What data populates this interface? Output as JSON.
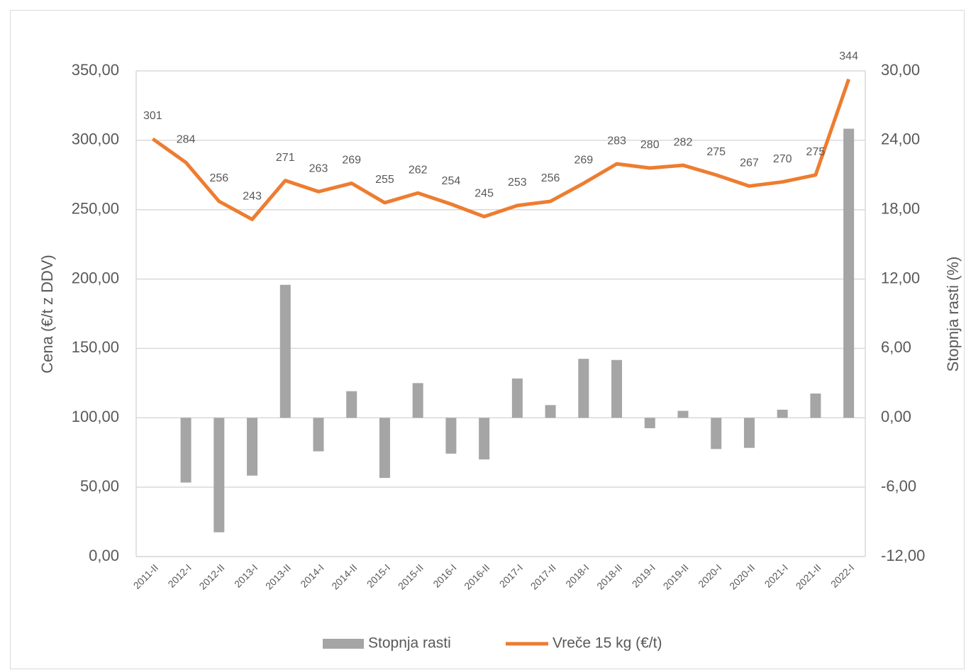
{
  "chart_data": {
    "type": "combo",
    "y_label": "Cena (€/t z DDV)",
    "y2_label": "Stopnja rasti (%)",
    "categories": [
      "2011-II",
      "2012-I",
      "2012-II",
      "2013-I",
      "2013-II",
      "2014-I",
      "2014-II",
      "2015-I",
      "2015-II",
      "2016-I",
      "2016-II",
      "2017-I",
      "2017-II",
      "2018-I",
      "2018-II",
      "2019-I",
      "2019-II",
      "2020-I",
      "2020-II",
      "2021-I",
      "2021-II",
      "2022-I"
    ],
    "series": [
      {
        "name": "Stopnja rasti",
        "type": "bar",
        "axis": "y2",
        "color": "#a5a5a5",
        "values": [
          null,
          -5.6,
          -9.9,
          -5.0,
          11.5,
          -2.9,
          2.3,
          -5.2,
          3.0,
          -3.1,
          -3.6,
          3.4,
          1.1,
          5.1,
          5.0,
          -0.9,
          0.6,
          -2.7,
          -2.6,
          0.7,
          2.1,
          25.0
        ]
      },
      {
        "name": "Vreče 15 kg (€/t)",
        "type": "line",
        "axis": "y",
        "color": "#ed7d31",
        "values": [
          301,
          284,
          256,
          243,
          271,
          263,
          269,
          255,
          262,
          254,
          245,
          253,
          256,
          269,
          283,
          280,
          282,
          275,
          267,
          270,
          275,
          344
        ]
      }
    ],
    "ylim": [
      0,
      350
    ],
    "yticks": [
      {
        "value": 0,
        "label": "0,00"
      },
      {
        "value": 50,
        "label": "50,00"
      },
      {
        "value": 100,
        "label": "100,00"
      },
      {
        "value": 150,
        "label": "150,00"
      },
      {
        "value": 200,
        "label": "200,00"
      },
      {
        "value": 250,
        "label": "250,00"
      },
      {
        "value": 300,
        "label": "300,00"
      },
      {
        "value": 350,
        "label": "350,00"
      }
    ],
    "y2lim": [
      -12,
      30
    ],
    "y2ticks": [
      {
        "value": -12,
        "label": "-12,00"
      },
      {
        "value": -6,
        "label": "-6,00"
      },
      {
        "value": 0,
        "label": "0,00"
      },
      {
        "value": 6,
        "label": "6,00"
      },
      {
        "value": 12,
        "label": "12,00"
      },
      {
        "value": 18,
        "label": "18,00"
      },
      {
        "value": 24,
        "label": "24,00"
      },
      {
        "value": 30,
        "label": "30,00"
      }
    ],
    "grid": true,
    "legend": "bottom"
  }
}
